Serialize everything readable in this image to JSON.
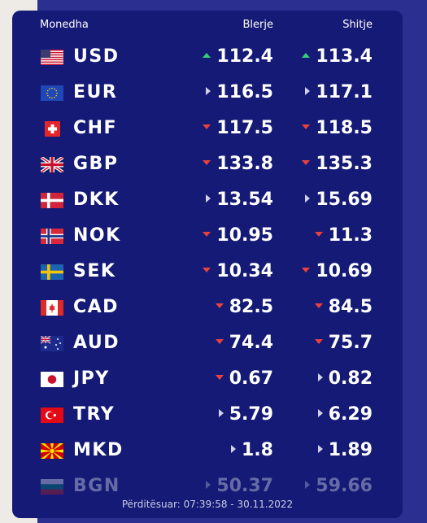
{
  "header": {
    "currency": "Monedha",
    "buy": "Blerje",
    "sell": "Shitje"
  },
  "rates": [
    {
      "code": "USD",
      "buy": "112.4",
      "buy_trend": "up",
      "sell": "113.4",
      "sell_trend": "up",
      "flag": "us-flag-icon"
    },
    {
      "code": "EUR",
      "buy": "116.5",
      "buy_trend": "flat",
      "sell": "117.1",
      "sell_trend": "flat",
      "flag": "eu-flag-icon"
    },
    {
      "code": "CHF",
      "buy": "117.5",
      "buy_trend": "down",
      "sell": "118.5",
      "sell_trend": "down",
      "flag": "ch-flag-icon"
    },
    {
      "code": "GBP",
      "buy": "133.8",
      "buy_trend": "down",
      "sell": "135.3",
      "sell_trend": "down",
      "flag": "gb-flag-icon"
    },
    {
      "code": "DKK",
      "buy": "13.54",
      "buy_trend": "flat",
      "sell": "15.69",
      "sell_trend": "flat",
      "flag": "dk-flag-icon"
    },
    {
      "code": "NOK",
      "buy": "10.95",
      "buy_trend": "down",
      "sell": "11.3",
      "sell_trend": "down",
      "flag": "no-flag-icon"
    },
    {
      "code": "SEK",
      "buy": "10.34",
      "buy_trend": "down",
      "sell": "10.69",
      "sell_trend": "down",
      "flag": "se-flag-icon"
    },
    {
      "code": "CAD",
      "buy": "82.5",
      "buy_trend": "down",
      "sell": "84.5",
      "sell_trend": "down",
      "flag": "ca-flag-icon"
    },
    {
      "code": "AUD",
      "buy": "74.4",
      "buy_trend": "down",
      "sell": "75.7",
      "sell_trend": "down",
      "flag": "au-flag-icon"
    },
    {
      "code": "JPY",
      "buy": "0.67",
      "buy_trend": "down",
      "sell": "0.82",
      "sell_trend": "flat",
      "flag": "jp-flag-icon"
    },
    {
      "code": "TRY",
      "buy": "5.79",
      "buy_trend": "flat",
      "sell": "6.29",
      "sell_trend": "flat",
      "flag": "tr-flag-icon"
    },
    {
      "code": "MKD",
      "buy": "1.8",
      "buy_trend": "flat",
      "sell": "1.89",
      "sell_trend": "flat",
      "flag": "mk-flag-icon"
    },
    {
      "code": "BGN",
      "buy": "50.37",
      "buy_trend": "flat",
      "sell": "59.66",
      "sell_trend": "flat",
      "flag": "bg-flag-icon"
    }
  ],
  "footer": {
    "updated": "Përditësuar: 07:39:58 - 30.11.2022"
  },
  "colors": {
    "panel": "#141a75",
    "background": "#2b2f8f",
    "up": "#34d07a",
    "down": "#e8423f",
    "flat": "#cfd2e8"
  }
}
